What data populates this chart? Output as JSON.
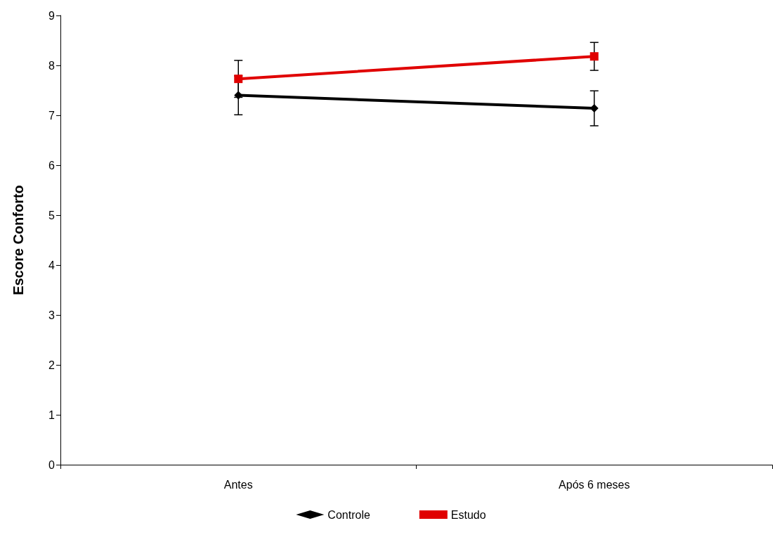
{
  "chart_data": {
    "type": "line",
    "ylabel": "Escore Conforto",
    "categories": [
      "Antes",
      "Após 6 meses"
    ],
    "series": [
      {
        "name": "Controle",
        "color": "#000000",
        "marker": "diamond",
        "values": [
          7.4,
          7.14
        ],
        "errors": [
          0.39,
          0.35
        ]
      },
      {
        "name": "Estudo",
        "color": "#e00000",
        "marker": "square",
        "values": [
          7.73,
          8.18
        ],
        "errors": [
          0.37,
          0.28
        ]
      }
    ],
    "ylim": [
      0,
      9
    ],
    "yticks": [
      0,
      1,
      2,
      3,
      4,
      5,
      6,
      7,
      8,
      9
    ],
    "grid": false,
    "legend": "bottom",
    "line_style": "solid"
  }
}
